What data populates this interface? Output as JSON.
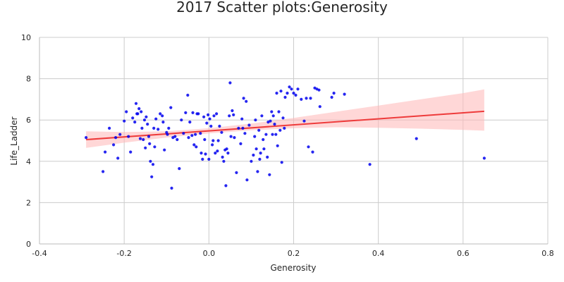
{
  "chart_data": {
    "type": "scatter",
    "title": "2017 Scatter plots:Generosity",
    "xlabel": "Generosity",
    "ylabel": "Life_Ladder",
    "xlim": [
      -0.4,
      0.8
    ],
    "ylim": [
      0,
      10
    ],
    "x_ticks": [
      "-0.4",
      "-0.2",
      "0.0",
      "0.2",
      "0.4",
      "0.6",
      "0.8"
    ],
    "y_ticks": [
      "0",
      "2",
      "4",
      "6",
      "8",
      "10"
    ],
    "x_tick_values": [
      -0.4,
      -0.2,
      0.0,
      0.2,
      0.4,
      0.6,
      0.8
    ],
    "y_tick_values": [
      0,
      2,
      4,
      6,
      8,
      10
    ],
    "grid": true,
    "point_color": "#0000ee",
    "line_color": "#ee3b3b",
    "band_color": "#ffb6b6",
    "points": [
      [
        -0.29,
        5.15
      ],
      [
        -0.25,
        3.5
      ],
      [
        -0.245,
        4.45
      ],
      [
        -0.235,
        5.6
      ],
      [
        -0.225,
        4.8
      ],
      [
        -0.22,
        5.15
      ],
      [
        -0.215,
        4.15
      ],
      [
        -0.21,
        5.3
      ],
      [
        -0.2,
        5.95
      ],
      [
        -0.195,
        6.4
      ],
      [
        -0.19,
        5.2
      ],
      [
        -0.185,
        4.45
      ],
      [
        -0.18,
        6.1
      ],
      [
        -0.175,
        5.9
      ],
      [
        -0.172,
        6.8
      ],
      [
        -0.17,
        6.3
      ],
      [
        -0.168,
        6.3
      ],
      [
        -0.165,
        6.55
      ],
      [
        -0.162,
        5.1
      ],
      [
        -0.16,
        6.4
      ],
      [
        -0.158,
        5.6
      ],
      [
        -0.155,
        5.05
      ],
      [
        -0.152,
        6.0
      ],
      [
        -0.15,
        4.65
      ],
      [
        -0.148,
        6.15
      ],
      [
        -0.145,
        5.8
      ],
      [
        -0.142,
        5.2
      ],
      [
        -0.14,
        4.85
      ],
      [
        -0.138,
        4.0
      ],
      [
        -0.135,
        3.25
      ],
      [
        -0.132,
        3.85
      ],
      [
        -0.13,
        5.6
      ],
      [
        -0.128,
        4.7
      ],
      [
        -0.125,
        6.05
      ],
      [
        -0.12,
        5.55
      ],
      [
        -0.115,
        6.3
      ],
      [
        -0.11,
        6.2
      ],
      [
        -0.108,
        5.9
      ],
      [
        -0.105,
        4.55
      ],
      [
        -0.1,
        5.4
      ],
      [
        -0.098,
        5.3
      ],
      [
        -0.095,
        5.6
      ],
      [
        -0.09,
        6.6
      ],
      [
        -0.088,
        2.7
      ],
      [
        -0.085,
        5.15
      ],
      [
        -0.08,
        5.2
      ],
      [
        -0.075,
        5.05
      ],
      [
        -0.07,
        3.65
      ],
      [
        -0.065,
        6.0
      ],
      [
        -0.06,
        5.35
      ],
      [
        -0.055,
        6.35
      ],
      [
        -0.05,
        7.2
      ],
      [
        -0.048,
        5.15
      ],
      [
        -0.045,
        5.9
      ],
      [
        -0.04,
        5.25
      ],
      [
        -0.038,
        6.35
      ],
      [
        -0.035,
        4.8
      ],
      [
        -0.032,
        5.3
      ],
      [
        -0.03,
        4.7
      ],
      [
        -0.028,
        6.3
      ],
      [
        -0.025,
        6.3
      ],
      [
        -0.02,
        5.35
      ],
      [
        -0.018,
        4.4
      ],
      [
        -0.015,
        4.1
      ],
      [
        -0.012,
        6.15
      ],
      [
        -0.01,
        5.05
      ],
      [
        -0.008,
        4.35
      ],
      [
        -0.005,
        5.85
      ],
      [
        0.0,
        4.1
      ],
      [
        -0.002,
        6.25
      ],
      [
        0.002,
        6.05
      ],
      [
        0.005,
        5.7
      ],
      [
        0.008,
        4.8
      ],
      [
        0.01,
        5.0
      ],
      [
        0.012,
        6.2
      ],
      [
        0.015,
        4.4
      ],
      [
        0.018,
        6.3
      ],
      [
        0.02,
        4.5
      ],
      [
        0.022,
        5.0
      ],
      [
        0.025,
        5.7
      ],
      [
        0.03,
        5.4
      ],
      [
        0.032,
        4.2
      ],
      [
        0.035,
        4.0
      ],
      [
        0.038,
        4.55
      ],
      [
        0.04,
        2.82
      ],
      [
        0.042,
        4.6
      ],
      [
        0.045,
        4.4
      ],
      [
        0.048,
        6.2
      ],
      [
        0.05,
        7.8
      ],
      [
        0.052,
        5.2
      ],
      [
        0.055,
        6.45
      ],
      [
        0.058,
        6.25
      ],
      [
        0.06,
        5.15
      ],
      [
        0.065,
        3.45
      ],
      [
        0.07,
        5.6
      ],
      [
        0.075,
        4.85
      ],
      [
        0.078,
        6.05
      ],
      [
        0.08,
        5.6
      ],
      [
        0.082,
        7.05
      ],
      [
        0.085,
        5.35
      ],
      [
        0.088,
        6.9
      ],
      [
        0.09,
        3.1
      ],
      [
        0.095,
        5.75
      ],
      [
        0.1,
        4.0
      ],
      [
        0.105,
        4.3
      ],
      [
        0.108,
        5.2
      ],
      [
        0.11,
        6.0
      ],
      [
        0.112,
        4.6
      ],
      [
        0.115,
        3.5
      ],
      [
        0.118,
        5.5
      ],
      [
        0.12,
        4.1
      ],
      [
        0.122,
        4.4
      ],
      [
        0.125,
        6.2
      ],
      [
        0.128,
        5.05
      ],
      [
        0.13,
        4.6
      ],
      [
        0.135,
        5.3
      ],
      [
        0.138,
        4.2
      ],
      [
        0.14,
        5.9
      ],
      [
        0.143,
        3.35
      ],
      [
        0.145,
        5.95
      ],
      [
        0.148,
        6.4
      ],
      [
        0.15,
        5.3
      ],
      [
        0.152,
        6.2
      ],
      [
        0.155,
        5.8
      ],
      [
        0.158,
        5.3
      ],
      [
        0.16,
        7.3
      ],
      [
        0.162,
        4.75
      ],
      [
        0.165,
        6.4
      ],
      [
        0.168,
        5.5
      ],
      [
        0.17,
        7.4
      ],
      [
        0.172,
        3.95
      ],
      [
        0.175,
        6.1
      ],
      [
        0.178,
        5.6
      ],
      [
        0.18,
        7.1
      ],
      [
        0.185,
        7.3
      ],
      [
        0.19,
        7.6
      ],
      [
        0.195,
        7.5
      ],
      [
        0.2,
        7.3
      ],
      [
        0.205,
        7.2
      ],
      [
        0.21,
        7.5
      ],
      [
        0.218,
        7.0
      ],
      [
        0.225,
        5.95
      ],
      [
        0.23,
        7.05
      ],
      [
        0.235,
        4.7
      ],
      [
        0.24,
        7.05
      ],
      [
        0.245,
        4.45
      ],
      [
        0.25,
        7.55
      ],
      [
        0.255,
        7.5
      ],
      [
        0.26,
        7.45
      ],
      [
        0.262,
        6.65
      ],
      [
        0.29,
        7.1
      ],
      [
        0.295,
        7.3
      ],
      [
        0.32,
        7.25
      ],
      [
        0.38,
        3.85
      ],
      [
        0.49,
        5.1
      ],
      [
        0.65,
        4.15
      ]
    ],
    "regression": {
      "x": [
        -0.29,
        0.65
      ],
      "y": [
        5.05,
        6.42
      ]
    },
    "confidence_band": {
      "x": [
        -0.29,
        -0.2,
        -0.1,
        0.0,
        0.1,
        0.2,
        0.3,
        0.4,
        0.5,
        0.6,
        0.65
      ],
      "upper": [
        5.45,
        5.42,
        5.45,
        5.6,
        5.83,
        6.1,
        6.4,
        6.7,
        7.0,
        7.3,
        7.48
      ],
      "lower": [
        4.65,
        4.9,
        5.15,
        5.35,
        5.5,
        5.6,
        5.65,
        5.62,
        5.58,
        5.52,
        5.48
      ]
    }
  }
}
